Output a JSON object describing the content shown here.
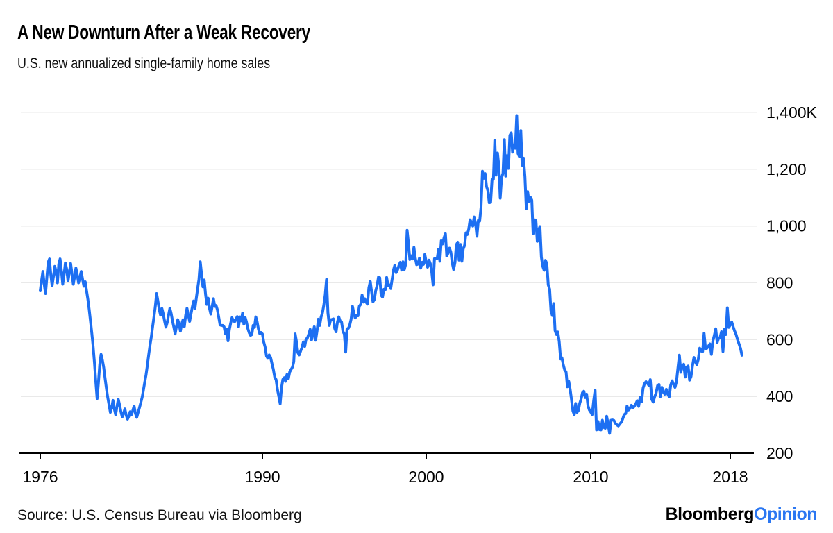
{
  "header": {
    "title": "A New Downturn After a Weak Recovery",
    "subtitle": "U.S. new annualized single-family home sales"
  },
  "footer": {
    "source": "Source: U.S. Census Bureau via Bloomberg",
    "brand_black": "Bloomberg",
    "brand_blue": "Opinion"
  },
  "colors": {
    "line": "#1d6ff2",
    "brand_blue": "#2b77f2",
    "axis": "#000000",
    "grid": "#e9e9e9",
    "text": "#000000"
  },
  "chart_data": {
    "type": "line",
    "title": "A New Downturn After a Weak Recovery",
    "subtitle": "U.S. new annualized single-family home sales",
    "unit": "K",
    "frequency": "monthly",
    "x_start_year": 1976,
    "x_end_label": "2018",
    "x_ticks": [
      1976,
      1990,
      2000,
      2010,
      2018
    ],
    "y_ticks": [
      {
        "value": 1400,
        "label": "1,400K"
      },
      {
        "value": 1200,
        "label": "1,200"
      },
      {
        "value": 1000,
        "label": "1,000"
      },
      {
        "value": 800,
        "label": "800"
      },
      {
        "value": 600,
        "label": "600"
      },
      {
        "value": 400,
        "label": "400"
      },
      {
        "value": 200,
        "label": "200"
      }
    ],
    "ylim": [
      200,
      1400
    ],
    "grid": "horizontal",
    "legend": "none",
    "series": [
      {
        "name": "U.S. new annualized single-family home sales (thousands)",
        "values": [
          772,
          808,
          840,
          795,
          762,
          818,
          872,
          884,
          828,
          790,
          822,
          858,
          838,
          800,
          866,
          884,
          842,
          795,
          828,
          870,
          848,
          806,
          836,
          868,
          832,
          795,
          822,
          852,
          828,
          800,
          818,
          840,
          812,
          788,
          804,
          772,
          742,
          706,
          664,
          622,
          575,
          518,
          452,
          392,
          448,
          512,
          548,
          528,
          502,
          465,
          430,
          398,
          372,
          344,
          360,
          386,
          356,
          336,
          364,
          390,
          370,
          346,
          328,
          340,
          356,
          334,
          320,
          330,
          346,
          336,
          350,
          366,
          340,
          326,
          344,
          360,
          378,
          396,
          422,
          450,
          476,
          510,
          546,
          580,
          610,
          646,
          680,
          716,
          762,
          736,
          706,
          686,
          710,
          692,
          666,
          644,
          660,
          686,
          710,
          692,
          666,
          644,
          620,
          646,
          670,
          654,
          630,
          656,
          670,
          646,
          686,
          710,
          686,
          664,
          690,
          714,
          736,
          710,
          746,
          780,
          812,
          874,
          830,
          786,
          810,
          760,
          724,
          746,
          710,
          690,
          716,
          744,
          717,
          720,
          705,
          679,
          652,
          650,
          650,
          645,
          620,
          637,
          596,
          635,
          658,
          677,
          667,
          663,
          672,
          681,
          645,
          680,
          666,
          693,
          654,
          678,
          662,
          639,
          624,
          615,
          618,
          650,
          643,
          680,
          663,
          637,
          621,
          625,
          620,
          591,
          574,
          542,
          534,
          546,
          537,
          515,
          496,
          468,
          459,
          425,
          401,
          374,
          430,
          460,
          466,
          453,
          477,
          462,
          486,
          495,
          503,
          522,
          620,
          591,
          554,
          546,
          560,
          572,
          592,
          576,
          602,
          606,
          620,
          636,
          599,
          618,
          645,
          598,
          630,
          672,
          650,
          680,
          694,
          722,
          758,
          812,
          695,
          650,
          670,
          671,
          673,
          639,
          628,
          663,
          680,
          665,
          662,
          629,
          620,
          556,
          638,
          640,
          652,
          672,
          717,
          692,
          676,
          685,
          684,
          718,
          724,
          757,
          732,
          744,
          731,
          725,
          783,
          805,
          769,
          733,
          741,
          772,
          790,
          820,
          818,
          756,
          750,
          777,
          776,
          819,
          791,
          793,
          780,
          811,
          845,
          862,
          836,
          846,
          861,
          872,
          845,
          874,
          847,
          866,
          985,
          940,
          882,
          895,
          884,
          925,
          887,
          864,
          866,
          887,
          852,
          872,
          865,
          900,
          873,
          855,
          880,
          868,
          840,
          793,
          885,
          886,
          886,
          918,
          876,
          948,
          937,
          959,
          973,
          894,
          905,
          922,
          908,
          870,
          847,
          872,
          934,
          943,
          880,
          935,
          876,
          919,
          932,
          976,
          970,
          989,
          1022,
          1013,
          1000,
          1032,
          1009,
          964,
          1020,
          1017,
          1067,
          1193,
          1168,
          1185,
          1139,
          1124,
          1082,
          1083,
          1163,
          1165,
          1302,
          1179,
          1257,
          1211,
          1098,
          1170,
          1186,
          1304,
          1176,
          1248,
          1203,
          1319,
          1328,
          1260,
          1286,
          1274,
          1389,
          1255,
          1244,
          1336,
          1214,
          1239,
          1174,
          1061,
          1121,
          1085,
          1101,
          1091,
          973,
          1022,
          1021,
          946,
          987,
          998,
          891,
          858,
          844,
          879,
          868,
          793,
          778,
          702,
          685,
          727,
          632,
          618,
          627,
          593,
          532,
          536,
          511,
          493,
          486,
          434,
          453,
          424,
          389,
          349,
          336,
          375,
          344,
          350,
          376,
          391,
          413,
          418,
          396,
          408,
          368,
          352,
          345,
          336,
          384,
          422,
          282,
          312,
          283,
          282,
          316,
          291,
          288,
          330,
          301,
          270,
          316,
          317,
          315,
          305,
          300,
          296,
          303,
          309,
          321,
          336,
          339,
          366,
          352,
          358,
          369,
          360,
          365,
          374,
          385,
          365,
          398,
          381,
          429,
          445,
          452,
          446,
          439,
          459,
          390,
          380,
          399,
          412,
          438,
          442,
          400,
          432,
          415,
          408,
          425,
          408,
          399,
          440,
          455,
          443,
          432,
          452,
          500,
          545,
          485,
          508,
          513,
          468,
          503,
          507,
          457,
          470,
          508,
          537,
          522,
          512,
          530,
          570,
          560,
          558,
          622,
          567,
          570,
          577,
          585,
          548,
          595,
          615,
          638,
          590,
          605,
          608,
          628,
          558,
          637,
          618,
          712,
          643,
          652,
          662,
          645,
          630,
          618,
          600,
          585,
          570,
          545
        ]
      }
    ]
  }
}
